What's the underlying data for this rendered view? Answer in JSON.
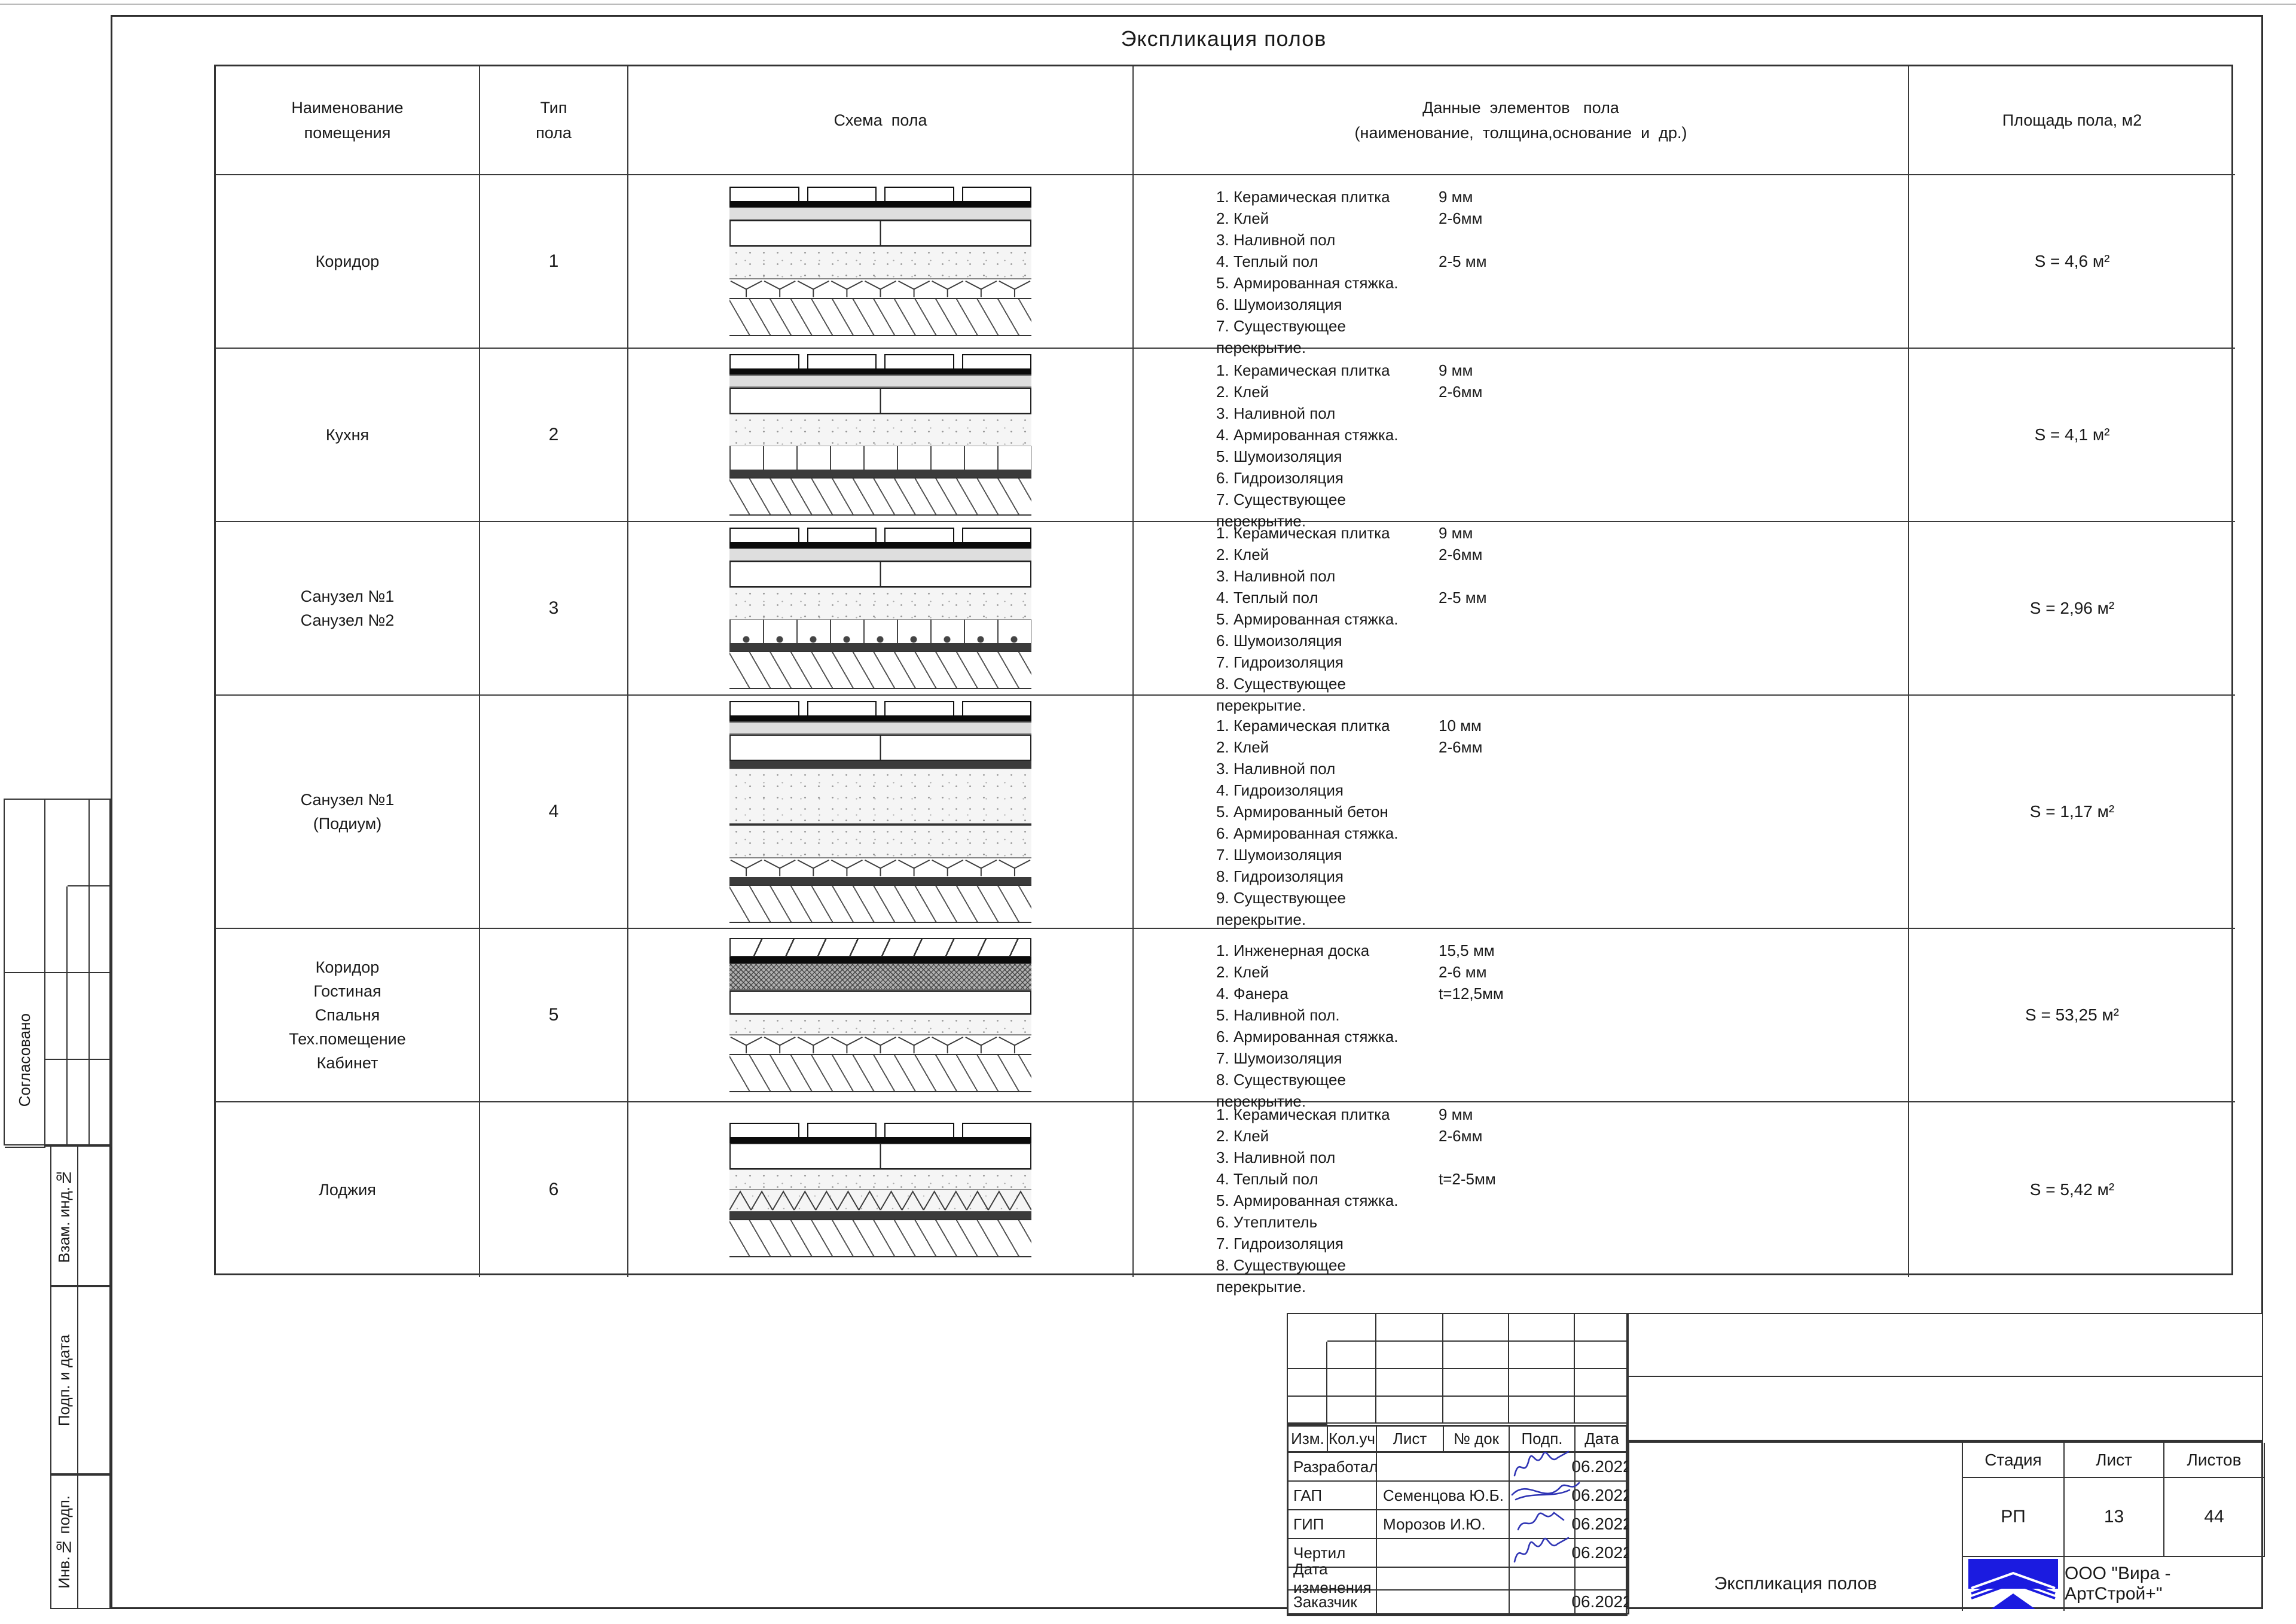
{
  "page": {
    "sheet_title": "Экспликация полов"
  },
  "table": {
    "headers": {
      "room": "Наименование\nпомещения",
      "type": "Тип\nпола",
      "scheme": "Схема  пола",
      "data": "Данные  элементов   пола\n(наименование,  толщина,основание  и  др.)",
      "area": "Площадь пола, м2"
    },
    "rows": [
      {
        "room": "Коридор",
        "type": "1",
        "scheme": "s1",
        "area": "S = 4,6 м²",
        "items": [
          [
            "1. Керамическая плитка",
            "9 мм"
          ],
          [
            "2. Клей",
            "2-6мм"
          ],
          [
            "3. Наливной пол",
            ""
          ],
          [
            "4. Теплый пол",
            "2-5 мм"
          ],
          [
            "5. Армированная стяжка.",
            ""
          ],
          [
            "6. Шумоизоляция",
            ""
          ],
          [
            "7. Существующее перекрытие.",
            ""
          ]
        ]
      },
      {
        "room": "Кухня",
        "type": "2",
        "scheme": "s2",
        "area": "S = 4,1 м²",
        "items": [
          [
            "1. Керамическая плитка",
            "9 мм"
          ],
          [
            "2. Клей",
            "2-6мм"
          ],
          [
            "3. Наливной пол",
            ""
          ],
          [
            "4. Армированная стяжка.",
            ""
          ],
          [
            "5. Шумоизоляция",
            ""
          ],
          [
            "6. Гидроизоляция",
            ""
          ],
          [
            "7. Существующее перекрытие.",
            ""
          ]
        ]
      },
      {
        "room": "Санузел №1\nСанузел №2",
        "type": "3",
        "scheme": "s3",
        "area": "S = 2,96 м²",
        "items": [
          [
            "1. Керамическая плитка",
            "9 мм"
          ],
          [
            "2. Клей",
            "2-6мм"
          ],
          [
            "3. Наливной пол",
            ""
          ],
          [
            "4. Теплый пол",
            "2-5 мм"
          ],
          [
            "5. Армированная стяжка.",
            ""
          ],
          [
            "6. Шумоизоляция",
            ""
          ],
          [
            "7. Гидроизоляция",
            ""
          ],
          [
            "8. Существующее перекрытие.",
            ""
          ]
        ]
      },
      {
        "room": "Санузел №1\n(Подиум)",
        "type": "4",
        "scheme": "s4",
        "area": "S = 1,17 м²",
        "items": [
          [
            "1. Керамическая плитка",
            "10 мм"
          ],
          [
            "2. Клей",
            "2-6мм"
          ],
          [
            "3. Наливной пол",
            ""
          ],
          [
            "4. Гидроизоляция",
            ""
          ],
          [
            "5. Армированный бетон",
            ""
          ],
          [
            "6. Армированная стяжка.",
            ""
          ],
          [
            "7. Шумоизоляция",
            ""
          ],
          [
            "8. Гидроизоляция",
            ""
          ],
          [
            "9. Существующее перекрытие.",
            ""
          ]
        ]
      },
      {
        "room": "Коридор\nГостиная\nСпальня\nТех.помещение\nКабинет",
        "type": "5",
        "scheme": "s5",
        "area": "S = 53,25 м²",
        "items": [
          [
            "1. Инженерная доска",
            "15,5 мм"
          ],
          [
            "2. Клей",
            "2-6 мм"
          ],
          [
            "4. Фанера",
            "t=12,5мм"
          ],
          [
            "5. Наливной пол.",
            ""
          ],
          [
            "6. Армированная стяжка.",
            ""
          ],
          [
            "7. Шумоизоляция",
            ""
          ],
          [
            "8. Существующее перекрытие.",
            ""
          ]
        ]
      },
      {
        "room": "Лоджия",
        "type": "6",
        "scheme": "s6",
        "area": "S = 5,42 м²",
        "items": [
          [
            "1. Керамическая плитка",
            "9 мм"
          ],
          [
            "2. Клей",
            "2-6мм"
          ],
          [
            "3. Наливной пол",
            ""
          ],
          [
            "4. Теплый пол",
            "t=2-5мм"
          ],
          [
            "5. Армированная стяжка.",
            ""
          ],
          [
            "6. Утеплитель",
            ""
          ],
          [
            "7. Гидроизоляция",
            ""
          ],
          [
            "8. Существующее перекрытие.",
            ""
          ]
        ]
      }
    ]
  },
  "schemes": {
    "s1": [
      "tiles",
      "glue",
      "gray",
      "whitesplit",
      "stipple",
      "yband",
      "hatch"
    ],
    "s2": [
      "tiles",
      "glue",
      "gray",
      "whitesplit",
      "stipple",
      "posts",
      "membrane",
      "hatch"
    ],
    "s3": [
      "tiles",
      "glue",
      "gray",
      "whitesplit",
      "stipple",
      "postsdots",
      "membrane",
      "hatch"
    ],
    "s4": [
      "tiles",
      "glue",
      "gray",
      "whitesplit",
      "membrane",
      "stipplelarge",
      "thinline",
      "stipple",
      "yband",
      "membrane",
      "hatch"
    ],
    "s5": [
      "plank",
      "glue",
      "plywood",
      "white",
      "stipple2",
      "yband",
      "hatch"
    ],
    "s6": [
      "tiles",
      "glue",
      "whitesplit",
      "stipple2",
      "zigzag",
      "membrane",
      "hatch"
    ]
  },
  "sidebar": {
    "approved": "Согласовано",
    "boxes": [
      "Взам. инд.№",
      "Подп. и дата",
      "Инв.№ подп."
    ]
  },
  "titleblock": {
    "grid_headers": [
      "Изм.",
      "Кол.уч",
      "Лист",
      "№ док",
      "Подп.",
      "Дата"
    ],
    "rows": [
      {
        "label": "Разработал",
        "name": "",
        "date": "06.2022"
      },
      {
        "label": "ГАП",
        "name": "Семенцова Ю.Б.",
        "date": "06.2022"
      },
      {
        "label": "ГИП",
        "name": "Морозов И.Ю.",
        "date": "06.2022"
      },
      {
        "label": "Чертил",
        "name": "",
        "date": "06.2022"
      },
      {
        "label": "Дата изменения",
        "name": "",
        "date": ""
      },
      {
        "label": "Заказчик",
        "name": "",
        "date": "06.2022"
      }
    ],
    "doc_title": "Экспликация полов",
    "stage_label": "Стадия",
    "sheet_label": "Лист",
    "sheets_label": "Листов",
    "stage": "РП",
    "sheet_no": "13",
    "sheets_total": "44",
    "company": "ООО \"Вира - АртСтрой+\"",
    "logo_color": "#1b1be0",
    "signature_color": "#2f34b4"
  }
}
